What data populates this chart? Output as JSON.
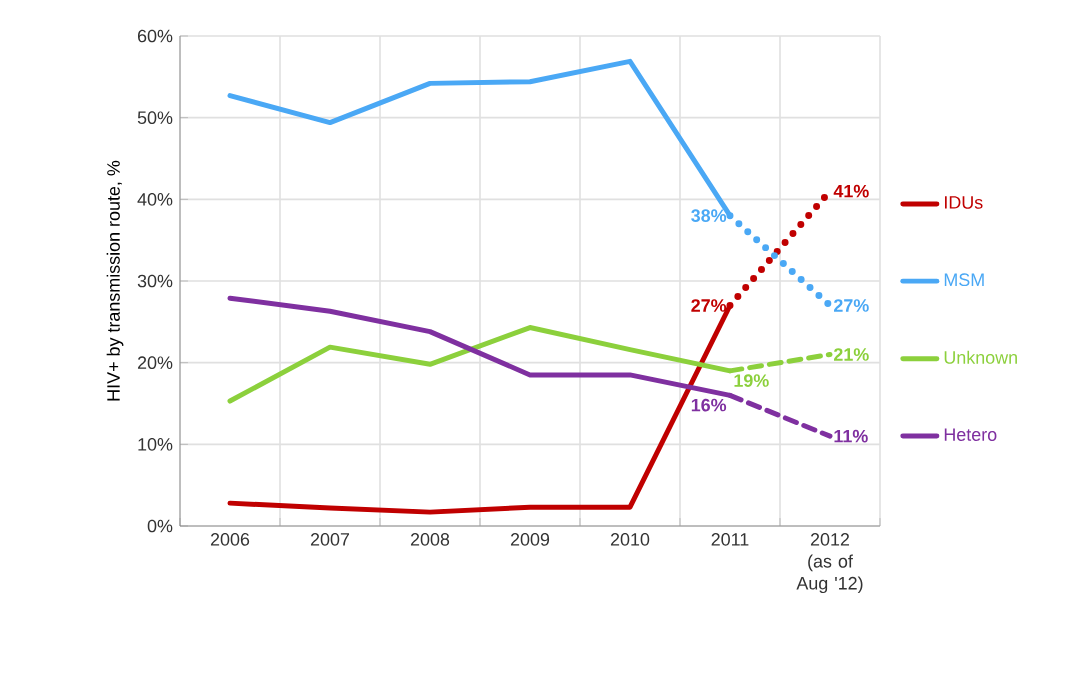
{
  "chart_data": {
    "type": "line",
    "ylabel": "HIV+ by transmission route, %",
    "categories": [
      "2006",
      "2007",
      "2008",
      "2009",
      "2010",
      "2011",
      "2012 (as of Aug '12)"
    ],
    "ylim": [
      0,
      60
    ],
    "yticks": [
      {
        "value": 0,
        "label": "0%"
      },
      {
        "value": 10,
        "label": "10%"
      },
      {
        "value": 20,
        "label": "20%"
      },
      {
        "value": 30,
        "label": "30%"
      },
      {
        "value": 40,
        "label": "40%"
      },
      {
        "value": 50,
        "label": "50%"
      },
      {
        "value": 60,
        "label": "60%"
      }
    ],
    "grid": true,
    "legend": "right",
    "marker": "none",
    "series": [
      {
        "name": "IDUs",
        "color": "#c00000",
        "values": [
          2.8,
          2.2,
          1.7,
          2.3,
          2.3,
          27,
          null
        ],
        "value_labels": [
          null,
          null,
          null,
          null,
          null,
          "27%",
          null
        ]
      },
      {
        "color": "#c00000",
        "line_style": "dotted",
        "values": [
          null,
          null,
          null,
          null,
          null,
          27,
          41
        ],
        "value_labels": [
          null,
          null,
          null,
          null,
          null,
          null,
          "41%"
        ]
      },
      {
        "name": "MSM",
        "color": "#4aa8f5",
        "values": [
          52.7,
          49.4,
          54.2,
          54.4,
          56.9,
          38,
          null
        ],
        "value_labels": [
          null,
          null,
          null,
          null,
          null,
          "38%",
          null
        ]
      },
      {
        "color": "#4aa8f5",
        "line_style": "dotted",
        "values": [
          null,
          null,
          null,
          null,
          null,
          38,
          27
        ],
        "value_labels": [
          null,
          null,
          null,
          null,
          null,
          null,
          "27%"
        ]
      },
      {
        "name": "Unknown",
        "color": "#8cd03c",
        "values": [
          15.3,
          21.9,
          19.8,
          24.3,
          21.6,
          19,
          null
        ],
        "value_labels": [
          null,
          null,
          null,
          null,
          null,
          "19%",
          null
        ]
      },
      {
        "color": "#8cd03c",
        "line_style": "dashed",
        "values": [
          null,
          null,
          null,
          null,
          null,
          19,
          21
        ],
        "value_labels": [
          null,
          null,
          null,
          null,
          null,
          null,
          "21%"
        ]
      },
      {
        "name": "Hetero",
        "color": "#7f30a0",
        "values": [
          27.9,
          26.3,
          23.8,
          18.5,
          18.5,
          16,
          null
        ],
        "value_labels": [
          null,
          null,
          null,
          null,
          null,
          "16%",
          null
        ]
      },
      {
        "color": "#7f30a0",
        "line_style": "dashed",
        "values": [
          null,
          null,
          null,
          null,
          null,
          16,
          11
        ],
        "value_labels": [
          null,
          null,
          null,
          null,
          null,
          null,
          "11%"
        ]
      }
    ]
  }
}
